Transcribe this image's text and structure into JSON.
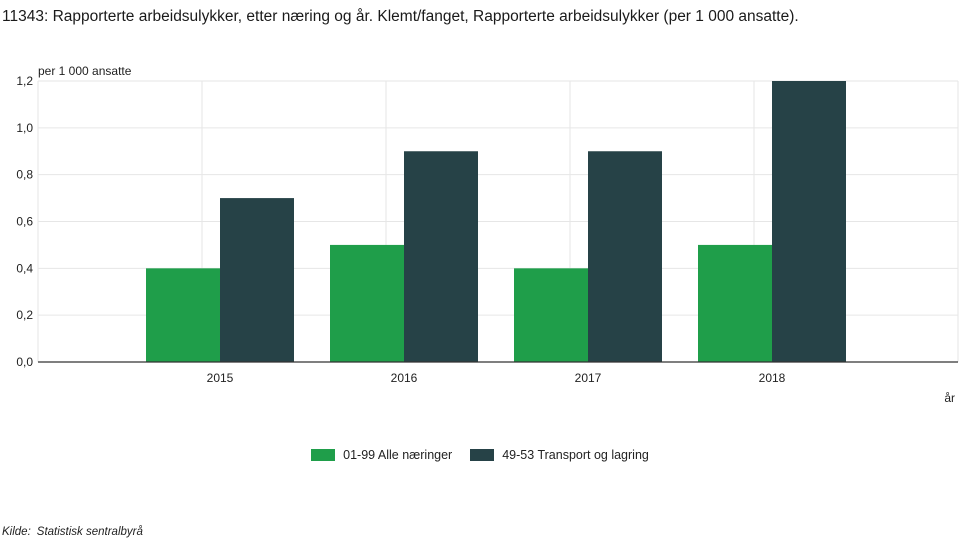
{
  "title": "11343: Rapporterte arbeidsulykker, etter næring og år. Klemt/fanget, Rapporterte arbeidsulykker (per 1 000 ansatte).",
  "source": {
    "label": "Kilde:",
    "name": "Statistisk sentralbyrå"
  },
  "colors": {
    "series1": "#1f9e4a",
    "series2": "#264247",
    "grid": "#e6e6e6",
    "axis": "#333333"
  },
  "chart_data": {
    "type": "bar",
    "ylabel": "per 1 000 ansatte",
    "xlabel": "år",
    "categories": [
      "2015",
      "2016",
      "2017",
      "2018"
    ],
    "series": [
      {
        "name": "01-99 Alle næringer",
        "values": [
          0.4,
          0.5,
          0.4,
          0.5
        ]
      },
      {
        "name": "49-53 Transport og lagring",
        "values": [
          0.7,
          0.9,
          0.9,
          1.2
        ]
      }
    ],
    "ylim": [
      0,
      1.2
    ],
    "yticks": [
      0,
      0.2,
      0.4,
      0.6,
      0.8,
      1.0,
      1.2
    ],
    "ytick_labels": [
      "0,0",
      "0,2",
      "0,4",
      "0,6",
      "0,8",
      "1,0",
      "1,2"
    ],
    "grid": true,
    "legend_position": "bottom-center"
  }
}
